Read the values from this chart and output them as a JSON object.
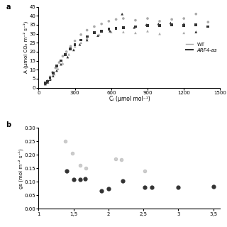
{
  "panel_a": {
    "ylabel": "A (μmol CO₂ m⁻² s⁻¹)",
    "xlabel": "Cᵢ (μmol mol⁻¹)",
    "ylim": [
      0,
      45
    ],
    "xlim": [
      0,
      1500
    ],
    "yticks": [
      0,
      5,
      10,
      15,
      20,
      25,
      30,
      35,
      40,
      45
    ],
    "xticks": [
      0,
      300,
      600,
      900,
      1200,
      1500
    ],
    "wt_scatter_circles": [
      [
        55,
        2.5
      ],
      [
        75,
        3.8
      ],
      [
        95,
        6.0
      ],
      [
        115,
        8.5
      ],
      [
        140,
        11.0
      ],
      [
        170,
        14.0
      ],
      [
        200,
        17.5
      ],
      [
        230,
        20.0
      ],
      [
        265,
        23.0
      ],
      [
        300,
        26.0
      ],
      [
        350,
        29.5
      ],
      [
        400,
        32.0
      ],
      [
        460,
        34.0
      ],
      [
        520,
        35.5
      ],
      [
        580,
        37.0
      ],
      [
        640,
        38.0
      ],
      [
        700,
        38.5
      ],
      [
        800,
        37.5
      ],
      [
        900,
        38.5
      ],
      [
        1000,
        37.0
      ],
      [
        1100,
        38.0
      ],
      [
        1200,
        38.5
      ],
      [
        1300,
        41.0
      ],
      [
        1400,
        36.5
      ]
    ],
    "wt_scatter_triangles": [
      [
        55,
        2.0
      ],
      [
        75,
        3.2
      ],
      [
        100,
        4.8
      ],
      [
        130,
        7.5
      ],
      [
        160,
        10.5
      ],
      [
        200,
        13.5
      ],
      [
        250,
        18.5
      ],
      [
        300,
        23.0
      ],
      [
        350,
        25.0
      ],
      [
        400,
        27.5
      ],
      [
        500,
        29.5
      ],
      [
        600,
        31.0
      ],
      [
        700,
        31.0
      ],
      [
        800,
        30.5
      ],
      [
        900,
        31.5
      ],
      [
        1000,
        30.0
      ],
      [
        1200,
        30.5
      ],
      [
        1300,
        31.0
      ]
    ],
    "arf_scatter_squares": [
      [
        55,
        2.5
      ],
      [
        75,
        3.5
      ],
      [
        95,
        5.5
      ],
      [
        120,
        8.0
      ],
      [
        150,
        12.0
      ],
      [
        185,
        15.0
      ],
      [
        220,
        18.5
      ],
      [
        260,
        21.5
      ],
      [
        300,
        24.0
      ],
      [
        350,
        26.5
      ],
      [
        400,
        28.5
      ],
      [
        460,
        30.5
      ],
      [
        520,
        31.5
      ],
      [
        580,
        32.5
      ],
      [
        640,
        33.0
      ],
      [
        700,
        33.5
      ],
      [
        800,
        34.0
      ],
      [
        900,
        34.5
      ],
      [
        1000,
        34.5
      ],
      [
        1100,
        35.0
      ],
      [
        1200,
        34.5
      ],
      [
        1300,
        35.0
      ],
      [
        1400,
        34.0
      ]
    ],
    "arf_scatter_triangles": [
      [
        55,
        2.0
      ],
      [
        75,
        3.0
      ],
      [
        95,
        4.5
      ],
      [
        120,
        6.5
      ],
      [
        150,
        9.5
      ],
      [
        185,
        13.0
      ],
      [
        240,
        17.0
      ],
      [
        290,
        21.0
      ],
      [
        340,
        24.0
      ],
      [
        400,
        26.5
      ],
      [
        490,
        29.0
      ],
      [
        590,
        31.5
      ],
      [
        690,
        41.0
      ],
      [
        790,
        33.5
      ],
      [
        890,
        35.0
      ],
      [
        990,
        35.5
      ],
      [
        1090,
        36.0
      ],
      [
        1200,
        35.5
      ],
      [
        1300,
        31.0
      ]
    ],
    "legend_wt": "WT",
    "legend_arf": "ARF4-as"
  },
  "panel_b": {
    "ylabel": "gs (mol m⁻² s⁻¹)",
    "xlabel": "",
    "ylim": [
      0,
      0.3
    ],
    "xlim": [
      1.0,
      3.6
    ],
    "yticks": [
      0,
      0.05,
      0.1,
      0.15,
      0.2,
      0.25,
      0.3
    ],
    "xticks": [
      1.0,
      1.5,
      2.0,
      2.5,
      3.0,
      3.5
    ],
    "xtick_labels": [
      "1",
      "1,5",
      "2",
      "2,5",
      "3",
      "3,5"
    ],
    "wt_scatter": [
      [
        1.38,
        0.25
      ],
      [
        1.48,
        0.207
      ],
      [
        1.6,
        0.162
      ],
      [
        1.68,
        0.15
      ],
      [
        2.1,
        0.185
      ],
      [
        2.18,
        0.183
      ],
      [
        2.52,
        0.14
      ]
    ],
    "arf_scatter": [
      [
        1.4,
        0.14
      ],
      [
        1.5,
        0.11
      ],
      [
        1.6,
        0.109
      ],
      [
        1.67,
        0.112
      ],
      [
        1.9,
        0.067
      ],
      [
        2.0,
        0.075
      ],
      [
        2.2,
        0.104
      ],
      [
        2.52,
        0.079
      ],
      [
        2.62,
        0.081
      ],
      [
        3.0,
        0.08
      ],
      [
        3.5,
        0.082
      ]
    ]
  },
  "colors": {
    "wt": "#aaaaaa",
    "arf": "#333333"
  }
}
